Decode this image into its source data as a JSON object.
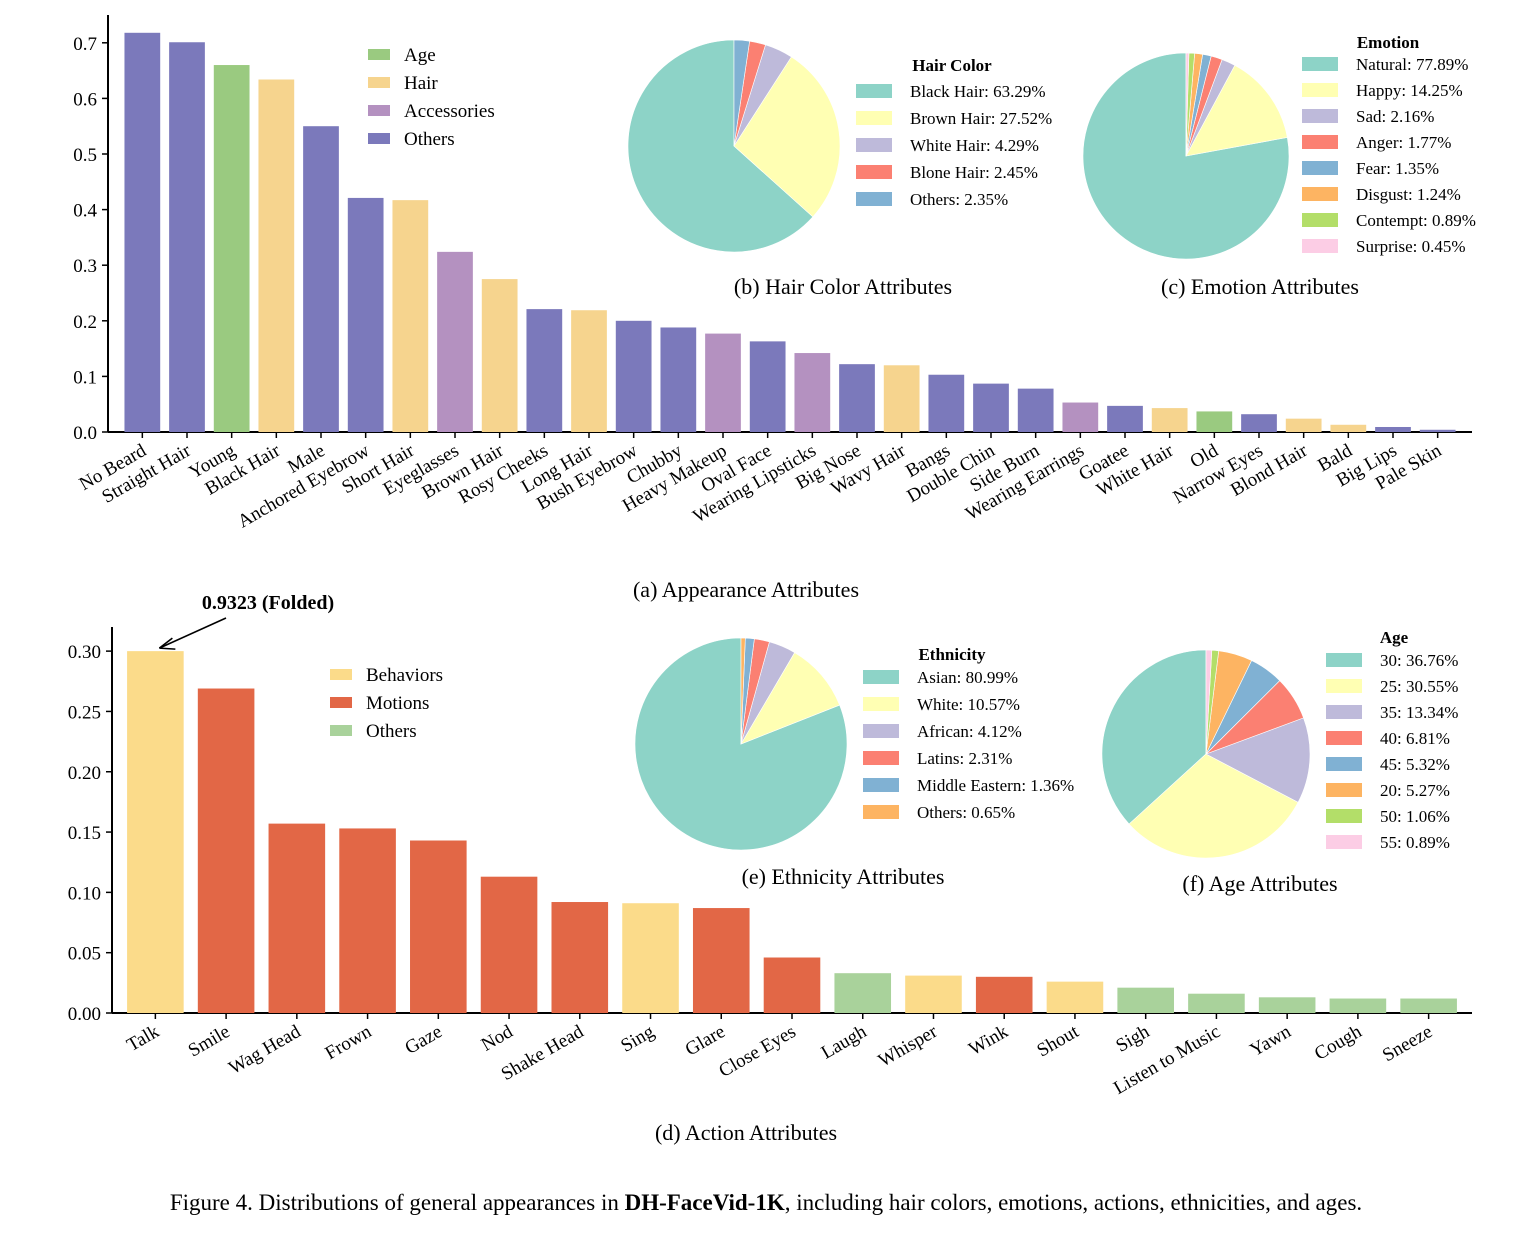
{
  "figure": {
    "caption_prefix": "Figure 4. Distributions of general appearances in ",
    "caption_bold": "DH-FaceVid-1K",
    "caption_suffix": ", including hair colors, emotions, actions, ethnicities, and ages."
  },
  "colors": {
    "Age": "#9aca80",
    "Hair": "#f6d48e",
    "Accessories": "#b491c0",
    "AppearanceOthers": "#7b79bb",
    "Behaviors": "#fbdb8a",
    "Motions": "#e26746",
    "ActionOthers": "#a9d29b",
    "pie": [
      "#8dd3c7",
      "#ffffb3",
      "#bebada",
      "#fb8072",
      "#80b1d3",
      "#fdb462",
      "#b3de69",
      "#fccde5"
    ]
  },
  "chart_data": [
    {
      "id": "appearance",
      "type": "bar",
      "caption": "(a) Appearance Attributes",
      "ylim": [
        0,
        0.75
      ],
      "yticks": [
        "0.0",
        "0.1",
        "0.2",
        "0.3",
        "0.4",
        "0.5",
        "0.6",
        "0.7"
      ],
      "legend": [
        "Age",
        "Hair",
        "Accessories",
        "Others"
      ],
      "legend_placement": "upper-left",
      "categories": [
        "No Beard",
        "Straight Hair",
        "Young",
        "Black Hair",
        "Male",
        "Anchored Eyebrow",
        "Short Hair",
        "Eyeglasses",
        "Brown Hair",
        "Rosy Cheeks",
        "Long Hair",
        "Bush Eyebrow",
        "Chubby",
        "Heavy Makeup",
        "Oval Face",
        "Wearing Lipsticks",
        "Big Nose",
        "Wavy Hair",
        "Bangs",
        "Double Chin",
        "Side Burn",
        "Wearing Earrings",
        "Goatee",
        "White Hair",
        "Old",
        "Narrow Eyes",
        "Blond Hair",
        "Bald",
        "Big Lips",
        "Pale Skin"
      ],
      "values": [
        0.718,
        0.701,
        0.66,
        0.634,
        0.55,
        0.421,
        0.417,
        0.324,
        0.275,
        0.221,
        0.219,
        0.2,
        0.188,
        0.177,
        0.163,
        0.142,
        0.122,
        0.12,
        0.103,
        0.087,
        0.078,
        0.053,
        0.047,
        0.043,
        0.037,
        0.032,
        0.024,
        0.013,
        0.009,
        0.004
      ],
      "groups": [
        "Others",
        "Others",
        "Age",
        "Hair",
        "Others",
        "Others",
        "Hair",
        "Accessories",
        "Hair",
        "Others",
        "Hair",
        "Others",
        "Others",
        "Accessories",
        "Others",
        "Accessories",
        "Others",
        "Hair",
        "Others",
        "Others",
        "Others",
        "Accessories",
        "Others",
        "Hair",
        "Age",
        "Others",
        "Hair",
        "Hair",
        "Others",
        "Others"
      ]
    },
    {
      "id": "hair",
      "type": "pie",
      "caption": "(b) Hair Color Attributes",
      "legend_title": "Hair Color",
      "labels": [
        "Black Hair: 63.29%",
        "Brown Hair: 27.52%",
        "White Hair: 4.29%",
        "Blone Hair: 2.45%",
        "Others: 2.35%"
      ],
      "values": [
        63.29,
        27.52,
        4.29,
        2.45,
        2.35
      ],
      "legend_placement": "right"
    },
    {
      "id": "emotion",
      "type": "pie",
      "caption": "(c) Emotion Attributes",
      "legend_title": "Emotion",
      "labels": [
        "Natural: 77.89%",
        "Happy: 14.25%",
        "Sad: 2.16%",
        "Anger: 1.77%",
        "Fear: 1.35%",
        "Disgust: 1.24%",
        "Contempt: 0.89%",
        "Surprise: 0.45%"
      ],
      "values": [
        77.89,
        14.25,
        2.16,
        1.77,
        1.35,
        1.24,
        0.89,
        0.45
      ],
      "legend_placement": "right"
    },
    {
      "id": "action",
      "type": "bar",
      "caption": "(d) Action Attributes",
      "ylim": [
        0,
        0.32
      ],
      "yticks": [
        "0.00",
        "0.05",
        "0.10",
        "0.15",
        "0.20",
        "0.25",
        "0.30"
      ],
      "legend": [
        "Behaviors",
        "Motions",
        "Others"
      ],
      "legend_placement": "upper-left",
      "annotation": "0.9323 (Folded)",
      "categories": [
        "Talk",
        "Smile",
        "Wag Head",
        "Frown",
        "Gaze",
        "Nod",
        "Shake Head",
        "Sing",
        "Glare",
        "Close Eyes",
        "Laugh",
        "Whisper",
        "Wink",
        "Shout",
        "Sigh",
        "Listen to Music",
        "Yawn",
        "Cough",
        "Sneeze"
      ],
      "values": [
        0.3,
        0.269,
        0.157,
        0.153,
        0.143,
        0.113,
        0.092,
        0.091,
        0.087,
        0.046,
        0.033,
        0.031,
        0.03,
        0.026,
        0.021,
        0.016,
        0.013,
        0.012,
        0.012
      ],
      "groups": [
        "Behaviors",
        "Motions",
        "Motions",
        "Motions",
        "Motions",
        "Motions",
        "Motions",
        "Behaviors",
        "Motions",
        "Motions",
        "Others",
        "Behaviors",
        "Motions",
        "Behaviors",
        "Others",
        "Others",
        "Others",
        "Others",
        "Others"
      ]
    },
    {
      "id": "ethnicity",
      "type": "pie",
      "caption": "(e) Ethnicity Attributes",
      "legend_title": "Ethnicity",
      "labels": [
        "Asian: 80.99%",
        "White: 10.57%",
        "African: 4.12%",
        "Latins: 2.31%",
        "Middle Eastern: 1.36%",
        "Others: 0.65%"
      ],
      "values": [
        80.99,
        10.57,
        4.12,
        2.31,
        1.36,
        0.65
      ],
      "legend_placement": "right"
    },
    {
      "id": "age",
      "type": "pie",
      "caption": "(f) Age Attributes",
      "legend_title": "Age",
      "labels": [
        "30: 36.76%",
        "25: 30.55%",
        "35: 13.34%",
        "40: 6.81%",
        "45: 5.32%",
        "20: 5.27%",
        "50: 1.06%",
        "55: 0.89%"
      ],
      "values": [
        36.76,
        30.55,
        13.34,
        6.81,
        5.32,
        5.27,
        1.06,
        0.89
      ],
      "legend_placement": "right"
    }
  ]
}
